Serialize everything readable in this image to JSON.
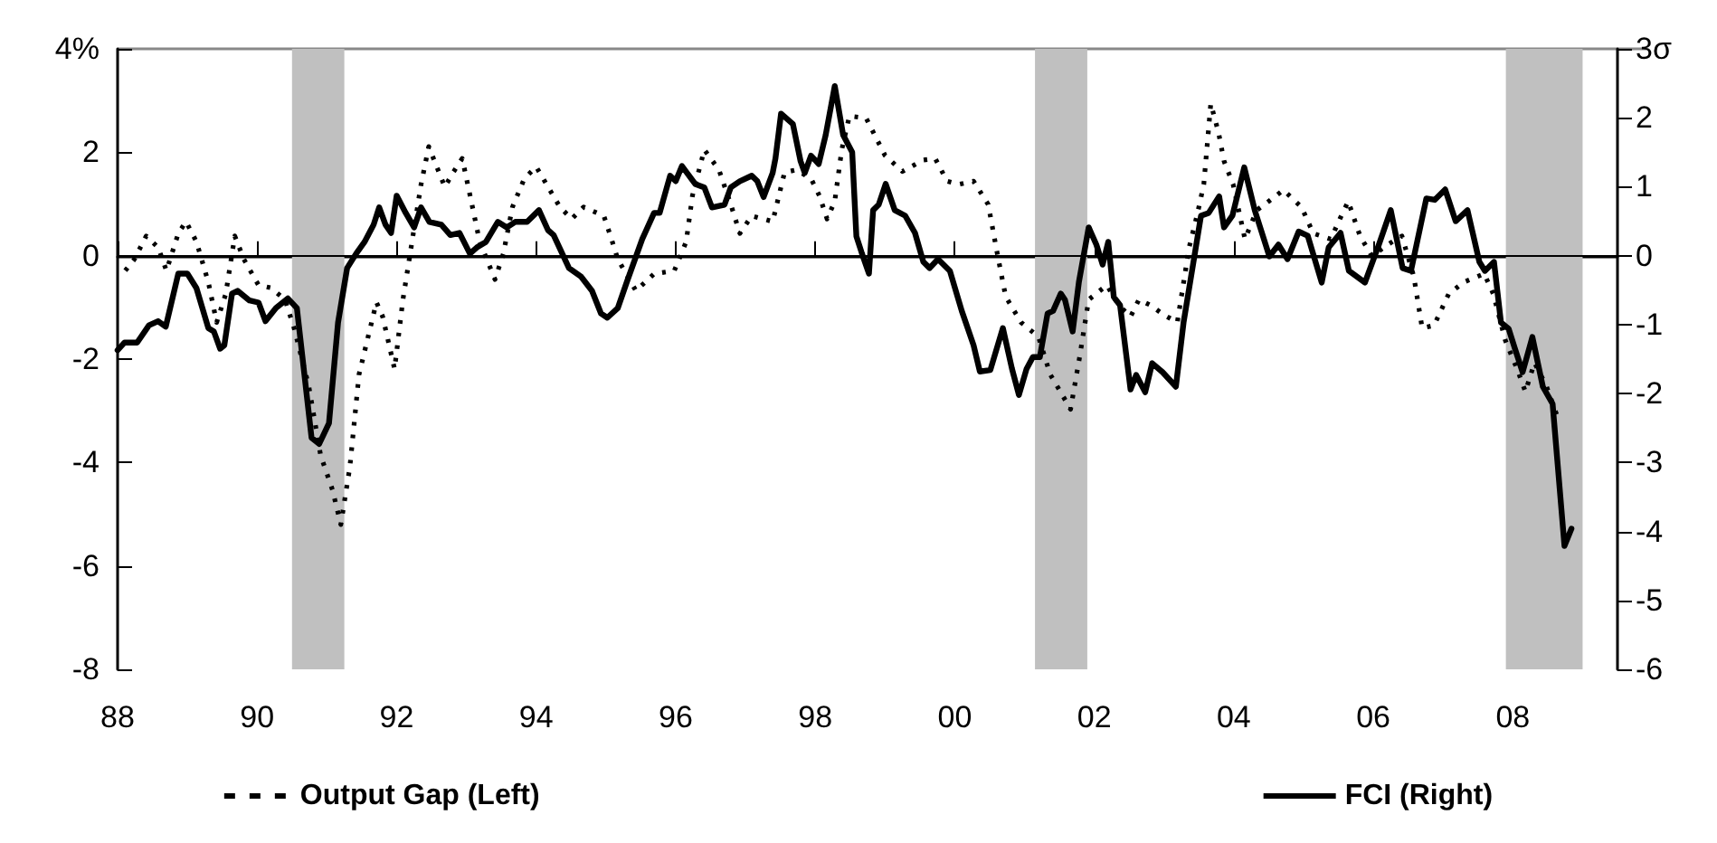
{
  "chart_data": {
    "type": "line",
    "xlim": [
      1988,
      2009.5
    ],
    "xticks": [
      {
        "value": 1988,
        "label": "88"
      },
      {
        "value": 1990,
        "label": "90"
      },
      {
        "value": 1992,
        "label": "92"
      },
      {
        "value": 1994,
        "label": "94"
      },
      {
        "value": 1996,
        "label": "96"
      },
      {
        "value": 1998,
        "label": "98"
      },
      {
        "value": 2000,
        "label": "00"
      },
      {
        "value": 2002,
        "label": "02"
      },
      {
        "value": 2004,
        "label": "04"
      },
      {
        "value": 2006,
        "label": "06"
      },
      {
        "value": 2008,
        "label": "08"
      }
    ],
    "ylim": [
      -8,
      4
    ],
    "yticks": [
      -8,
      -6,
      -4,
      -2,
      0,
      2,
      {
        "value": 4,
        "label": "4%"
      }
    ],
    "y2lim": [
      -6,
      3
    ],
    "y2ticks": [
      -6,
      -5,
      -4,
      -3,
      -2,
      -1,
      0,
      1,
      2,
      {
        "value": 3,
        "label": "3σ"
      }
    ],
    "grid": false,
    "legend": "bottom",
    "marker": "none",
    "ref_lines": [
      {
        "axis": "y",
        "value": 0,
        "label": null,
        "color": "#000000"
      }
    ],
    "bands": [
      {
        "axis": "x",
        "from": 1990.5,
        "to": 1991.25,
        "label": null,
        "color": "#c0c0c0"
      },
      {
        "axis": "x",
        "from": 2001.15,
        "to": 2001.9,
        "label": null,
        "color": "#c0c0c0"
      },
      {
        "axis": "x",
        "from": 2007.9,
        "to": 2009.0,
        "label": null,
        "color": "#c0c0c0"
      }
    ],
    "series": [
      {
        "name": "Output Gap (Left)",
        "color": "#000000",
        "line_style": "dotted",
        "axis": "y",
        "x": [
          1988.11,
          1988.24,
          1988.41,
          1988.58,
          1988.7,
          1988.87,
          1988.98,
          1989.13,
          1989.3,
          1989.42,
          1989.55,
          1989.68,
          1989.81,
          1990.02,
          1990.19,
          1990.4,
          1990.53,
          1990.74,
          1990.91,
          1991.08,
          1991.2,
          1991.33,
          1991.46,
          1991.58,
          1991.71,
          1991.8,
          1991.97,
          1992.09,
          1992.22,
          1992.35,
          1992.46,
          1992.56,
          1992.69,
          1992.81,
          1992.94,
          1993.07,
          1993.19,
          1993.41,
          1993.53,
          1993.66,
          1993.83,
          1994.0,
          1994.17,
          1994.34,
          1994.51,
          1994.68,
          1994.97,
          1995.08,
          1995.17,
          1995.43,
          1995.69,
          1995.98,
          1996.15,
          1996.24,
          1996.41,
          1996.62,
          1996.79,
          1996.92,
          1997.09,
          1997.39,
          1997.56,
          1997.73,
          1997.94,
          1998.06,
          1998.17,
          1998.28,
          1998.38,
          1998.49,
          1998.73,
          1999.0,
          1999.25,
          1999.55,
          1999.72,
          1999.89,
          2000.06,
          2000.27,
          2000.48,
          2000.61,
          2000.73,
          2000.95,
          2001.2,
          2001.37,
          2001.54,
          2001.66,
          2001.79,
          2001.92,
          2002.18,
          2002.35,
          2002.52,
          2002.64,
          2002.81,
          2002.98,
          2003.19,
          2003.36,
          2003.48,
          2003.57,
          2003.67,
          2003.78,
          2003.86,
          2003.99,
          2004.16,
          2004.33,
          2004.5,
          2004.71,
          2004.97,
          2005.14,
          2005.39,
          2005.52,
          2005.64,
          2005.81,
          2005.98,
          2006.2,
          2006.41,
          2006.58,
          2006.7,
          2006.87,
          2007.08,
          2007.3,
          2007.59,
          2007.72,
          2007.89,
          2008.06,
          2008.18,
          2008.31,
          2008.48,
          2008.63
        ],
        "values": [
          -0.29,
          -0.07,
          0.38,
          0.16,
          -0.29,
          0.43,
          0.66,
          0.27,
          -0.51,
          -1.29,
          -0.74,
          0.38,
          -0.07,
          -0.57,
          -0.62,
          -0.85,
          -1.4,
          -2.52,
          -3.86,
          -4.53,
          -5.2,
          -4.08,
          -2.3,
          -1.63,
          -0.9,
          -1.18,
          -2.19,
          -0.85,
          0.27,
          1.38,
          2.11,
          1.77,
          1.33,
          1.61,
          1.88,
          1.05,
          0.27,
          -0.46,
          0.04,
          0.94,
          1.49,
          1.72,
          1.33,
          0.94,
          0.71,
          0.94,
          0.77,
          0.32,
          -0.07,
          -0.68,
          -0.35,
          -0.29,
          0.27,
          1.16,
          2.05,
          1.66,
          0.99,
          0.43,
          0.77,
          0.66,
          1.61,
          1.66,
          1.49,
          1.16,
          0.71,
          1.05,
          2.05,
          2.7,
          2.66,
          1.94,
          1.63,
          1.85,
          1.88,
          1.44,
          1.38,
          1.44,
          0.99,
          0.04,
          -0.79,
          -1.29,
          -1.57,
          -2.3,
          -2.69,
          -2.97,
          -1.96,
          -0.85,
          -0.57,
          -0.96,
          -1.18,
          -0.85,
          -0.96,
          -1.13,
          -1.29,
          0.16,
          0.82,
          1.38,
          2.94,
          2.39,
          1.83,
          1.38,
          0.32,
          0.88,
          1.05,
          1.27,
          0.94,
          0.43,
          0.32,
          0.71,
          1.05,
          0.38,
          -0.01,
          0.21,
          0.38,
          -0.4,
          -1.4,
          -1.35,
          -0.74,
          -0.51,
          -0.35,
          -0.74,
          -1.63,
          -2.19,
          -2.63,
          -2.07,
          -2.52,
          -3.08
        ]
      },
      {
        "name": "FCI (Right)",
        "color": "#000000",
        "line_style": "solid",
        "axis": "y2",
        "x": [
          1988.0,
          1988.1,
          1988.28,
          1988.45,
          1988.58,
          1988.69,
          1988.87,
          1989.0,
          1989.13,
          1989.3,
          1989.38,
          1989.47,
          1989.53,
          1989.64,
          1989.72,
          1989.89,
          1990.02,
          1990.12,
          1990.27,
          1990.44,
          1990.57,
          1990.78,
          1990.89,
          1991.03,
          1991.16,
          1991.29,
          1991.42,
          1991.54,
          1991.67,
          1991.75,
          1991.84,
          1991.92,
          1992.0,
          1992.13,
          1992.25,
          1992.35,
          1992.47,
          1992.64,
          1992.77,
          1992.9,
          1993.05,
          1993.15,
          1993.28,
          1993.45,
          1993.58,
          1993.7,
          1993.87,
          1994.04,
          1994.17,
          1994.25,
          1994.47,
          1994.64,
          1994.8,
          1994.93,
          1995.02,
          1995.17,
          1995.3,
          1995.52,
          1995.69,
          1995.77,
          1995.92,
          1996.0,
          1996.09,
          1996.28,
          1996.41,
          1996.52,
          1996.7,
          1996.79,
          1996.92,
          1997.09,
          1997.17,
          1997.26,
          1997.39,
          1997.43,
          1997.51,
          1997.68,
          1997.79,
          1997.85,
          1997.94,
          1998.05,
          1998.15,
          1998.28,
          1998.4,
          1998.53,
          1998.59,
          1998.67,
          1998.77,
          1998.83,
          1998.91,
          1999.01,
          1999.14,
          1999.29,
          1999.43,
          1999.55,
          1999.64,
          1999.76,
          1999.93,
          2000.1,
          2000.27,
          2000.36,
          2000.51,
          2000.69,
          2000.82,
          2000.92,
          2001.03,
          2001.12,
          2001.22,
          2001.33,
          2001.41,
          2001.52,
          2001.58,
          2001.69,
          2001.78,
          2001.92,
          2002.03,
          2002.12,
          2002.2,
          2002.28,
          2002.37,
          2002.52,
          2002.6,
          2002.73,
          2002.83,
          2002.98,
          2003.17,
          2003.28,
          2003.53,
          2003.64,
          2003.79,
          2003.86,
          2003.98,
          2004.15,
          2004.3,
          2004.51,
          2004.64,
          2004.77,
          2004.93,
          2005.06,
          2005.26,
          2005.36,
          2005.53,
          2005.65,
          2005.88,
          2006.08,
          2006.25,
          2006.42,
          2006.54,
          2006.76,
          2006.88,
          2007.03,
          2007.18,
          2007.35,
          2007.52,
          2007.6,
          2007.73,
          2007.83,
          2007.94,
          2008.03,
          2008.14,
          2008.28,
          2008.43,
          2008.57,
          2008.74,
          2008.84
        ],
        "values": [
          -1.37,
          -1.26,
          -1.26,
          -1.01,
          -0.95,
          -1.03,
          -0.26,
          -0.26,
          -0.47,
          -1.05,
          -1.1,
          -1.35,
          -1.3,
          -0.55,
          -0.51,
          -0.65,
          -0.68,
          -0.95,
          -0.76,
          -0.62,
          -0.76,
          -2.64,
          -2.73,
          -2.43,
          -0.97,
          -0.18,
          0.03,
          0.2,
          0.45,
          0.7,
          0.45,
          0.33,
          0.87,
          0.62,
          0.41,
          0.7,
          0.49,
          0.45,
          0.3,
          0.33,
          0.03,
          0.12,
          0.2,
          0.49,
          0.41,
          0.49,
          0.49,
          0.66,
          0.37,
          0.3,
          -0.18,
          -0.3,
          -0.51,
          -0.84,
          -0.9,
          -0.76,
          -0.38,
          0.24,
          0.62,
          0.62,
          1.16,
          1.08,
          1.3,
          1.04,
          0.99,
          0.7,
          0.74,
          0.99,
          1.08,
          1.16,
          1.08,
          0.85,
          1.2,
          1.41,
          2.06,
          1.91,
          1.37,
          1.2,
          1.45,
          1.33,
          1.75,
          2.46,
          1.75,
          1.5,
          0.28,
          0.03,
          -0.26,
          0.66,
          0.74,
          1.04,
          0.66,
          0.58,
          0.33,
          -0.09,
          -0.18,
          -0.05,
          -0.22,
          -0.8,
          -1.3,
          -1.68,
          -1.66,
          -1.05,
          -1.64,
          -2.02,
          -1.64,
          -1.47,
          -1.47,
          -0.84,
          -0.8,
          -0.55,
          -0.64,
          -1.1,
          -0.38,
          0.41,
          0.16,
          -0.13,
          0.2,
          -0.6,
          -0.72,
          -1.94,
          -1.73,
          -1.98,
          -1.56,
          -1.69,
          -1.9,
          -0.97,
          0.58,
          0.62,
          0.86,
          0.41,
          0.58,
          1.28,
          0.66,
          -0.01,
          0.16,
          -0.05,
          0.35,
          0.29,
          -0.39,
          0.12,
          0.33,
          -0.22,
          -0.39,
          0.16,
          0.66,
          -0.18,
          -0.22,
          0.83,
          0.81,
          0.96,
          0.5,
          0.66,
          -0.09,
          -0.22,
          -0.09,
          -0.97,
          -1.06,
          -1.35,
          -1.69,
          -1.18,
          -1.9,
          -2.15,
          -4.21,
          -3.96
        ]
      }
    ]
  }
}
